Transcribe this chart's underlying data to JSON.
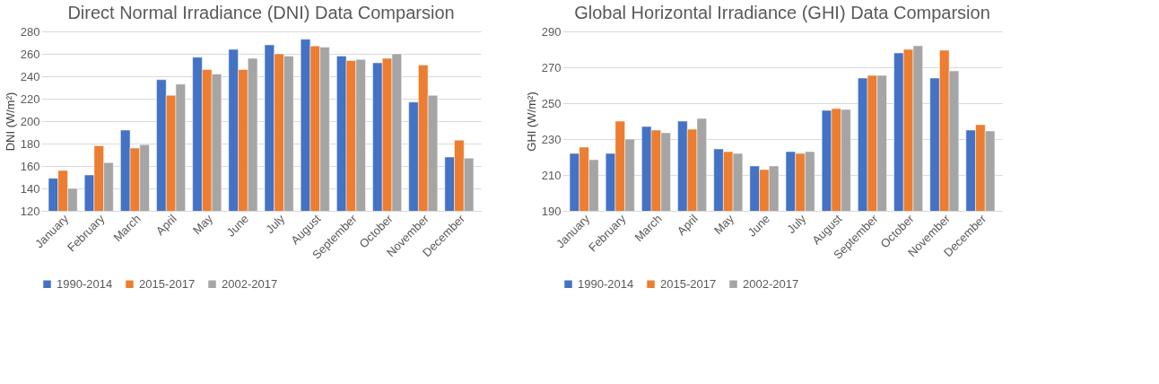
{
  "chart_data": [
    {
      "type": "bar",
      "title": "Direct Normal Irradiance (DNI) Data Comparsion",
      "ylabel": "DNI (W/m²)",
      "categories": [
        "January",
        "February",
        "March",
        "April",
        "May",
        "June",
        "July",
        "August",
        "September",
        "October",
        "November",
        "December"
      ],
      "series": [
        {
          "name": "1990-2014",
          "color": "#4472c4",
          "values": [
            149,
            152,
            192,
            237,
            257,
            264,
            268,
            273,
            258,
            252,
            217,
            168
          ]
        },
        {
          "name": "2015-2017",
          "color": "#ed7d31",
          "values": [
            156,
            178,
            176,
            223,
            246,
            246,
            260,
            267,
            254,
            256,
            250,
            183
          ]
        },
        {
          "name": "2002-2017",
          "color": "#a5a5a5",
          "values": [
            140,
            163,
            179,
            233,
            242,
            256,
            258,
            266,
            255,
            260,
            223,
            167
          ]
        }
      ],
      "ylim": [
        120,
        280
      ],
      "yticks": [
        120,
        140,
        160,
        180,
        200,
        220,
        240,
        260,
        280
      ],
      "grid": "y",
      "legend": "bottom"
    },
    {
      "type": "bar",
      "title": "Global Horizontal Irradiance (GHI) Data Comparsion",
      "ylabel": "GHI (W/m²)",
      "categories": [
        "January",
        "February",
        "March",
        "April",
        "May",
        "June",
        "July",
        "August",
        "September",
        "October",
        "November",
        "December"
      ],
      "series": [
        {
          "name": "1990-2014",
          "color": "#4472c4",
          "values": [
            222,
            222,
            237,
            240,
            224.5,
            215,
            223,
            246,
            264,
            278,
            264,
            235
          ]
        },
        {
          "name": "2015-2017",
          "color": "#ed7d31",
          "values": [
            225.5,
            240,
            235,
            235.5,
            223,
            213,
            222,
            247,
            265.5,
            280,
            279.5,
            238
          ]
        },
        {
          "name": "2002-2017",
          "color": "#a5a5a5",
          "values": [
            218.5,
            230,
            233.5,
            241.5,
            222,
            215,
            223,
            246.5,
            265.5,
            282,
            268,
            234.5
          ]
        }
      ],
      "ylim": [
        190,
        290
      ],
      "yticks": [
        190,
        210,
        230,
        250,
        270,
        290
      ],
      "grid": "y",
      "legend": "bottom"
    }
  ]
}
